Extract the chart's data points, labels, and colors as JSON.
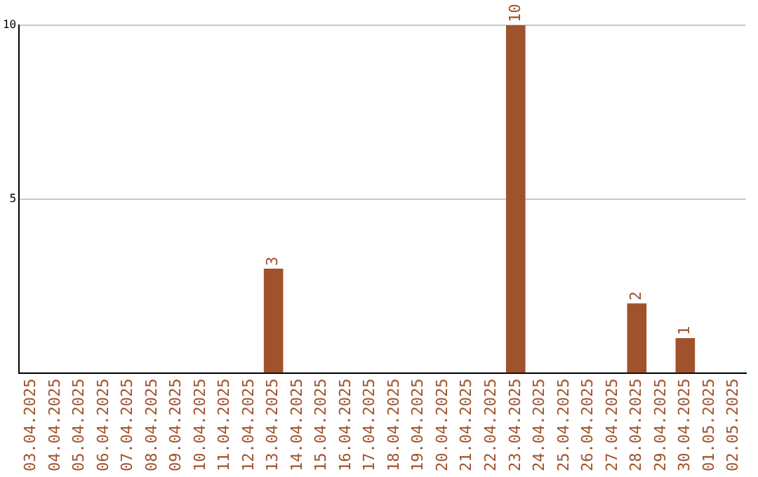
{
  "chart_data": {
    "type": "bar",
    "categories": [
      "03.04.2025",
      "04.04.2025",
      "05.04.2025",
      "06.04.2025",
      "07.04.2025",
      "08.04.2025",
      "09.04.2025",
      "10.04.2025",
      "11.04.2025",
      "12.04.2025",
      "13.04.2025",
      "14.04.2025",
      "15.04.2025",
      "16.04.2025",
      "17.04.2025",
      "18.04.2025",
      "19.04.2025",
      "20.04.2025",
      "21.04.2025",
      "22.04.2025",
      "23.04.2025",
      "24.04.2025",
      "25.04.2025",
      "26.04.2025",
      "27.04.2025",
      "28.04.2025",
      "29.04.2025",
      "30.04.2025",
      "01.05.2025",
      "02.05.2025"
    ],
    "values": [
      0,
      0,
      0,
      0,
      0,
      0,
      0,
      0,
      0,
      0,
      3,
      0,
      0,
      0,
      0,
      0,
      0,
      0,
      0,
      0,
      10,
      0,
      0,
      0,
      0,
      2,
      0,
      1,
      0,
      0
    ],
    "value_labels": [
      null,
      null,
      null,
      null,
      null,
      null,
      null,
      null,
      null,
      null,
      "3",
      null,
      null,
      null,
      null,
      null,
      null,
      null,
      null,
      null,
      "10",
      null,
      null,
      null,
      null,
      "2",
      null,
      "1",
      null,
      null
    ],
    "color": "#a0522d",
    "ylim": [
      0,
      10
    ],
    "yticks": [
      5,
      10
    ],
    "grid": "y",
    "legend": false
  }
}
